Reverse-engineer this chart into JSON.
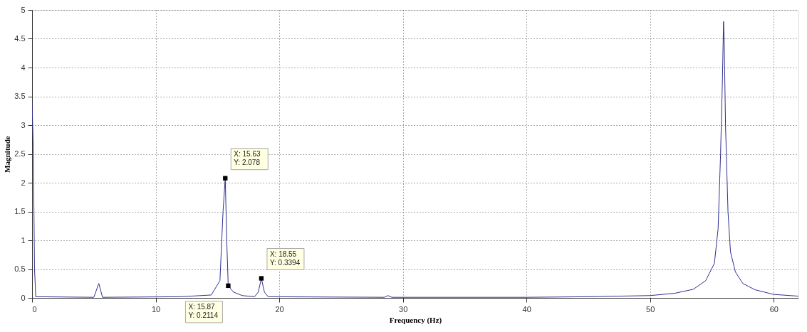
{
  "chart_data": {
    "type": "line",
    "xlabel": "Frequency (Hz)",
    "ylabel": "Magnitude",
    "x": [
      0,
      0.1,
      0.2,
      0.3,
      5.0,
      5.4,
      5.7,
      12,
      14.5,
      15.2,
      15.45,
      15.63,
      15.75,
      15.87,
      16.3,
      17,
      18.0,
      18.3,
      18.55,
      18.8,
      19.1,
      28.5,
      28.8,
      29.1,
      40,
      45,
      50,
      52,
      53.5,
      54.5,
      55.2,
      55.5,
      55.7,
      55.85,
      55.94,
      56.0,
      56.1,
      56.3,
      56.5,
      56.9,
      57.5,
      58.5,
      60,
      62
    ],
    "series": [
      {
        "color": "#2f2f8f",
        "values": [
          3.4,
          2.6,
          0.5,
          0.02,
          0.01,
          0.25,
          0.01,
          0.02,
          0.05,
          0.3,
          1.5,
          2.08,
          1.0,
          0.21,
          0.1,
          0.04,
          0.02,
          0.1,
          0.34,
          0.1,
          0.02,
          0.01,
          0.04,
          0.01,
          0.01,
          0.02,
          0.04,
          0.08,
          0.15,
          0.3,
          0.6,
          1.2,
          2.5,
          3.8,
          4.8,
          4.4,
          3.0,
          1.5,
          0.8,
          0.45,
          0.25,
          0.14,
          0.06,
          0.03
        ]
      }
    ],
    "xlim": [
      0,
      62
    ],
    "xticks": [
      0,
      10,
      20,
      30,
      40,
      50,
      60
    ],
    "ylim": [
      0,
      5
    ],
    "yticks": [
      0,
      0.5,
      1,
      1.5,
      2,
      2.5,
      3,
      3.5,
      4,
      4.5,
      5
    ],
    "grid": true,
    "marker": "none",
    "line_style": "solid",
    "annotations": [
      {
        "text": "X: 15.63\nY: 2.078",
        "x": 15.63,
        "y": 2.078
      },
      {
        "text": "X: 15.87\nY: 0.2114",
        "x": 15.87,
        "y": 0.2114
      },
      {
        "text": "X: 18.55\nY: 0.3394",
        "x": 18.55,
        "y": 0.3394
      }
    ]
  }
}
